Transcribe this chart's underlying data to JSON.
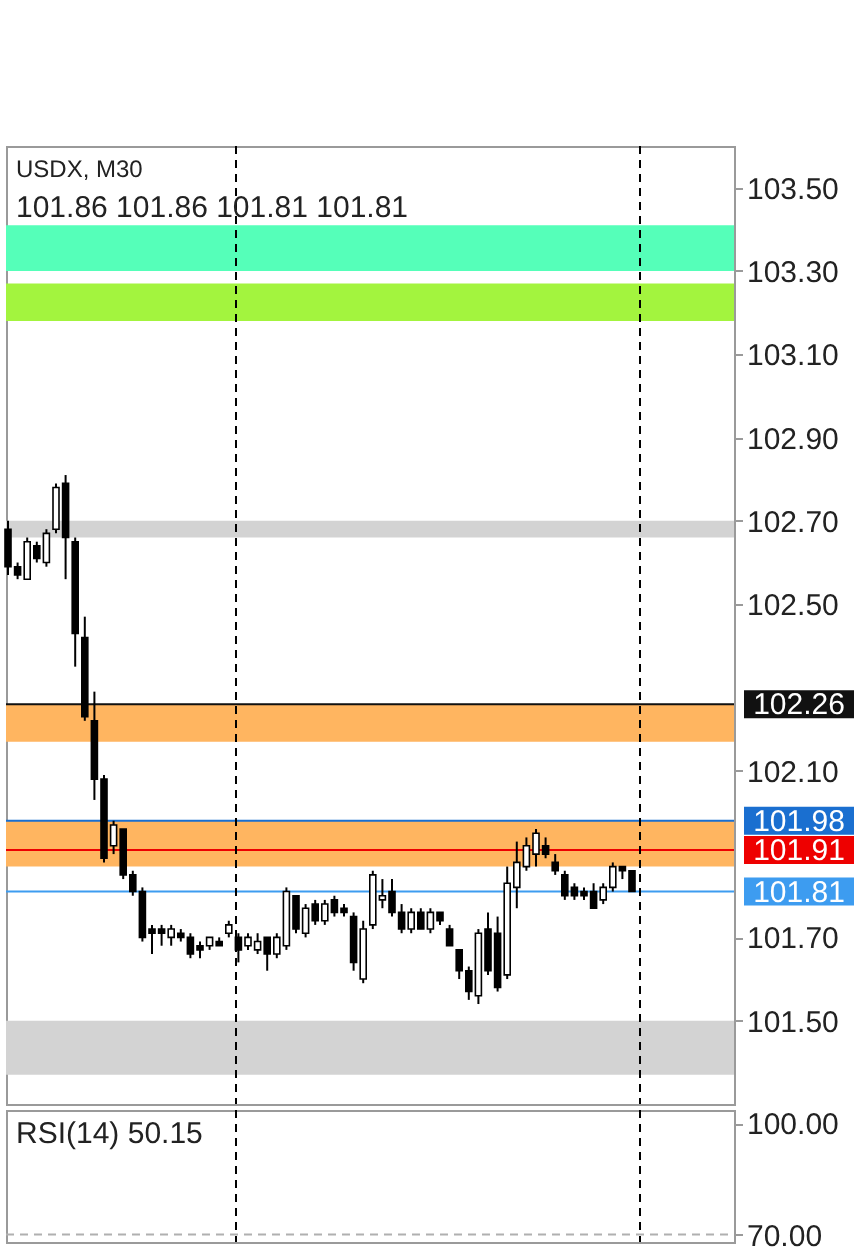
{
  "chart_data": [
    {
      "type": "candlestick",
      "title": "USDX, M30",
      "subtitle": "101.86 101.86 101.81 101.81",
      "categories": [
        null,
        null,
        null,
        null,
        null,
        null,
        null,
        null,
        null,
        null,
        null,
        null,
        null,
        null,
        null,
        null,
        null,
        null,
        null,
        null,
        null,
        null,
        null,
        null,
        null,
        null,
        null,
        null,
        null,
        null,
        null,
        null,
        null,
        null,
        null,
        null,
        null,
        null,
        null,
        null,
        null,
        null,
        null,
        null,
        null,
        null,
        null,
        null,
        null,
        null,
        null,
        null,
        null,
        null,
        null,
        null,
        null,
        null,
        null,
        null,
        null,
        null,
        null,
        null,
        null,
        null
      ],
      "ohlc": [
        [
          102.68,
          102.7,
          102.57,
          102.59
        ],
        [
          102.59,
          102.6,
          102.56,
          102.57
        ],
        [
          102.56,
          102.66,
          102.56,
          102.65
        ],
        [
          102.64,
          102.65,
          102.6,
          102.61
        ],
        [
          102.6,
          102.68,
          102.59,
          102.67
        ],
        [
          102.68,
          102.79,
          102.67,
          102.78
        ],
        [
          102.79,
          102.81,
          102.56,
          102.66
        ],
        [
          102.65,
          102.66,
          102.35,
          102.43
        ],
        [
          102.42,
          102.47,
          102.22,
          102.23
        ],
        [
          102.22,
          102.29,
          102.03,
          102.08
        ],
        [
          102.08,
          102.09,
          101.88,
          101.89
        ],
        [
          101.92,
          101.98,
          101.9,
          101.97
        ],
        [
          101.96,
          101.96,
          101.84,
          101.85
        ],
        [
          101.85,
          101.86,
          101.8,
          101.81
        ],
        [
          101.81,
          101.82,
          101.69,
          101.7
        ],
        [
          101.72,
          101.73,
          101.66,
          101.71
        ],
        [
          101.72,
          101.73,
          101.68,
          101.71
        ],
        [
          101.7,
          101.73,
          101.68,
          101.72
        ],
        [
          101.71,
          101.72,
          101.69,
          101.7
        ],
        [
          101.7,
          101.71,
          101.65,
          101.66
        ],
        [
          101.68,
          101.69,
          101.65,
          101.67
        ],
        [
          101.68,
          101.7,
          101.67,
          101.7
        ],
        [
          101.69,
          101.7,
          101.68,
          101.68
        ],
        [
          101.71,
          101.74,
          101.7,
          101.73
        ],
        [
          101.7,
          101.71,
          101.64,
          101.67
        ],
        [
          101.68,
          101.71,
          101.67,
          101.7
        ],
        [
          101.67,
          101.71,
          101.66,
          101.69
        ],
        [
          101.7,
          101.7,
          101.62,
          101.66
        ],
        [
          101.66,
          101.71,
          101.65,
          101.7
        ],
        [
          101.68,
          101.82,
          101.67,
          101.81
        ],
        [
          101.8,
          101.8,
          101.71,
          101.72
        ],
        [
          101.71,
          101.78,
          101.7,
          101.77
        ],
        [
          101.78,
          101.79,
          101.73,
          101.74
        ],
        [
          101.74,
          101.79,
          101.73,
          101.78
        ],
        [
          101.79,
          101.8,
          101.75,
          101.76
        ],
        [
          101.77,
          101.78,
          101.75,
          101.76
        ],
        [
          101.75,
          101.76,
          101.62,
          101.64
        ],
        [
          101.6,
          101.74,
          101.59,
          101.72
        ],
        [
          101.73,
          101.86,
          101.72,
          101.85
        ],
        [
          101.79,
          101.84,
          101.77,
          101.8
        ],
        [
          101.81,
          101.84,
          101.75,
          101.76
        ],
        [
          101.76,
          101.78,
          101.71,
          101.72
        ],
        [
          101.72,
          101.77,
          101.71,
          101.76
        ],
        [
          101.76,
          101.77,
          101.72,
          101.72
        ],
        [
          101.72,
          101.77,
          101.71,
          101.76
        ],
        [
          101.76,
          101.76,
          101.73,
          101.74
        ],
        [
          101.72,
          101.73,
          101.68,
          101.68
        ],
        [
          101.67,
          101.67,
          101.6,
          101.62
        ],
        [
          101.62,
          101.63,
          101.55,
          101.57
        ],
        [
          101.56,
          101.72,
          101.54,
          101.71
        ],
        [
          101.72,
          101.76,
          101.61,
          101.62
        ],
        [
          101.71,
          101.75,
          101.57,
          101.58
        ],
        [
          101.61,
          101.87,
          101.6,
          101.83
        ],
        [
          101.82,
          101.93,
          101.77,
          101.88
        ],
        [
          101.87,
          101.94,
          101.86,
          101.92
        ],
        [
          101.9,
          101.96,
          101.87,
          101.95
        ],
        [
          101.92,
          101.94,
          101.89,
          101.9
        ],
        [
          101.88,
          101.9,
          101.85,
          101.86
        ],
        [
          101.85,
          101.86,
          101.79,
          101.8
        ],
        [
          101.82,
          101.83,
          101.79,
          101.8
        ],
        [
          101.81,
          101.82,
          101.79,
          101.8
        ],
        [
          101.81,
          101.83,
          101.77,
          101.77
        ],
        [
          101.79,
          101.83,
          101.78,
          101.82
        ],
        [
          101.82,
          101.88,
          101.81,
          101.87
        ],
        [
          101.87,
          101.87,
          101.84,
          101.86
        ],
        [
          101.86,
          101.86,
          101.81,
          101.81
        ]
      ],
      "colors": [
        "#000000",
        "#000000",
        "#ffffff",
        "#000000",
        "#ffffff",
        "#ffffff",
        "#000000",
        "#000000",
        "#000000",
        "#000000",
        "#000000",
        "#ffffff",
        "#000000",
        "#000000",
        "#000000",
        "#000000",
        "#000000",
        "#ffffff",
        "#000000",
        "#000000",
        "#000000",
        "#ffffff",
        "#000000",
        "#ffffff",
        "#000000",
        "#ffffff",
        "#ffffff",
        "#000000",
        "#ffffff",
        "#ffffff",
        "#000000",
        "#ffffff",
        "#000000",
        "#ffffff",
        "#000000",
        "#000000",
        "#000000",
        "#ffffff",
        "#ffffff",
        "#ffffff",
        "#000000",
        "#000000",
        "#ffffff",
        "#000000",
        "#ffffff",
        "#000000",
        "#000000",
        "#000000",
        "#000000",
        "#ffffff",
        "#000000",
        "#000000",
        "#ffffff",
        "#ffffff",
        "#ffffff",
        "#ffffff",
        "#000000",
        "#000000",
        "#000000",
        "#000000",
        "#000000",
        "#000000",
        "#ffffff",
        "#ffffff",
        "#000000",
        "#000000"
      ],
      "ylim": [
        101.3,
        103.6
      ],
      "yticks": [
        {
          "value": 103.5,
          "label": "103.50"
        },
        {
          "value": 103.3,
          "label": "103.30"
        },
        {
          "value": 103.1,
          "label": "103.10"
        },
        {
          "value": 102.9,
          "label": "102.90"
        },
        {
          "value": 102.7,
          "label": "102.70"
        },
        {
          "value": 102.5,
          "label": "102.50"
        },
        {
          "value": 102.1,
          "label": "102.10"
        },
        {
          "value": 101.7,
          "label": "101.70"
        },
        {
          "value": 101.5,
          "label": "101.50"
        }
      ],
      "bands": [
        {
          "axis": "y",
          "from": 103.3,
          "to": 103.41,
          "color": "#55ffb9"
        },
        {
          "axis": "y",
          "from": 103.18,
          "to": 103.27,
          "color": "#a3f43e"
        },
        {
          "axis": "y",
          "from": 102.66,
          "to": 102.7,
          "color": "#d3d3d3"
        },
        {
          "axis": "y",
          "from": 102.17,
          "to": 102.26,
          "color": "#ffb560"
        },
        {
          "axis": "y",
          "from": 101.87,
          "to": 101.98,
          "color": "#ffb560"
        },
        {
          "axis": "y",
          "from": 101.37,
          "to": 101.5,
          "color": "#d3d3d3"
        }
      ],
      "ref_lines": [
        {
          "axis": "y",
          "value": 102.26,
          "label": "102.26",
          "color": "#111111"
        },
        {
          "axis": "y",
          "value": 101.98,
          "label": "101.98",
          "color": "#1a6fd0"
        },
        {
          "axis": "y",
          "value": 101.91,
          "label": "101.91",
          "color": "#ee0000"
        },
        {
          "axis": "y",
          "value": 101.81,
          "label": "101.81",
          "color": "#3d9cf0"
        }
      ],
      "tick_labels": "y"
    },
    {
      "type": "line",
      "title": "RSI(14) 50.15",
      "categories": [
        null,
        null,
        null,
        null,
        null,
        null,
        null,
        null,
        null,
        null,
        null,
        null,
        null,
        null,
        null,
        null,
        null,
        null,
        null,
        null,
        null,
        null,
        null,
        null,
        null,
        null,
        null,
        null,
        null,
        null,
        null,
        null,
        null,
        null,
        null,
        null,
        null,
        null,
        null,
        null,
        null,
        null,
        null,
        null,
        null,
        null,
        null,
        null,
        null,
        null,
        null,
        null,
        null,
        null,
        null,
        null,
        null,
        null,
        null,
        null,
        null,
        null,
        null,
        null,
        null,
        null
      ],
      "values": [
        null,
        null,
        null,
        null,
        null,
        null,
        null,
        null,
        null,
        null,
        null,
        null,
        null,
        null,
        null,
        null,
        null,
        null,
        null,
        null,
        null,
        null,
        null,
        null,
        null,
        null,
        null,
        null,
        null,
        null,
        null,
        null,
        null,
        null,
        null,
        null,
        null,
        null,
        null,
        null,
        null,
        null,
        null,
        null,
        null,
        null,
        null,
        null,
        null,
        null,
        null,
        null,
        null,
        null,
        null,
        null,
        null,
        null,
        null,
        null,
        null,
        null,
        null,
        null,
        null,
        null
      ],
      "ylim": [
        68,
        103.5
      ],
      "yticks": [
        {
          "value": 100,
          "label": "100.00"
        },
        {
          "value": 70,
          "label": "70.00"
        }
      ],
      "ref_lines": [
        {
          "axis": "y",
          "value": 70,
          "color": "#b0b0b0",
          "line_style": "dashed"
        }
      ],
      "tick_labels": "y"
    }
  ]
}
